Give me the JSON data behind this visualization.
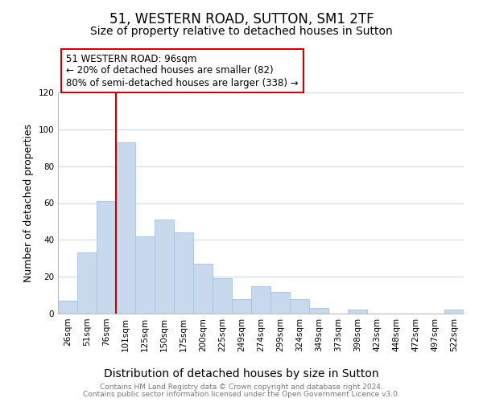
{
  "title": "51, WESTERN ROAD, SUTTON, SM1 2TF",
  "subtitle": "Size of property relative to detached houses in Sutton",
  "xlabel": "Distribution of detached houses by size in Sutton",
  "ylabel": "Number of detached properties",
  "bar_labels": [
    "26sqm",
    "51sqm",
    "76sqm",
    "101sqm",
    "125sqm",
    "150sqm",
    "175sqm",
    "200sqm",
    "225sqm",
    "249sqm",
    "274sqm",
    "299sqm",
    "324sqm",
    "349sqm",
    "373sqm",
    "398sqm",
    "423sqm",
    "448sqm",
    "472sqm",
    "497sqm",
    "522sqm"
  ],
  "bar_values": [
    7,
    33,
    61,
    93,
    42,
    51,
    44,
    27,
    19,
    8,
    15,
    12,
    8,
    3,
    0,
    2,
    0,
    0,
    0,
    0,
    2
  ],
  "bar_color": "#c8d9ee",
  "bar_edge_color": "#a8c0dc",
  "vline_color": "#cc0000",
  "annotation_text": "51 WESTERN ROAD: 96sqm\n← 20% of detached houses are smaller (82)\n80% of semi-detached houses are larger (338) →",
  "annotation_box_edgecolor": "#cc0000",
  "annotation_box_facecolor": "#ffffff",
  "ylim": [
    0,
    120
  ],
  "yticks": [
    0,
    20,
    40,
    60,
    80,
    100,
    120
  ],
  "footer_line1": "Contains HM Land Registry data © Crown copyright and database right 2024.",
  "footer_line2": "Contains public sector information licensed under the Open Government Licence v3.0.",
  "title_fontsize": 12,
  "subtitle_fontsize": 10,
  "xlabel_fontsize": 10,
  "ylabel_fontsize": 9,
  "tick_fontsize": 7.5,
  "annotation_fontsize": 8.5,
  "footer_fontsize": 6.5,
  "background_color": "#ffffff",
  "grid_color": "#d0d8e8"
}
